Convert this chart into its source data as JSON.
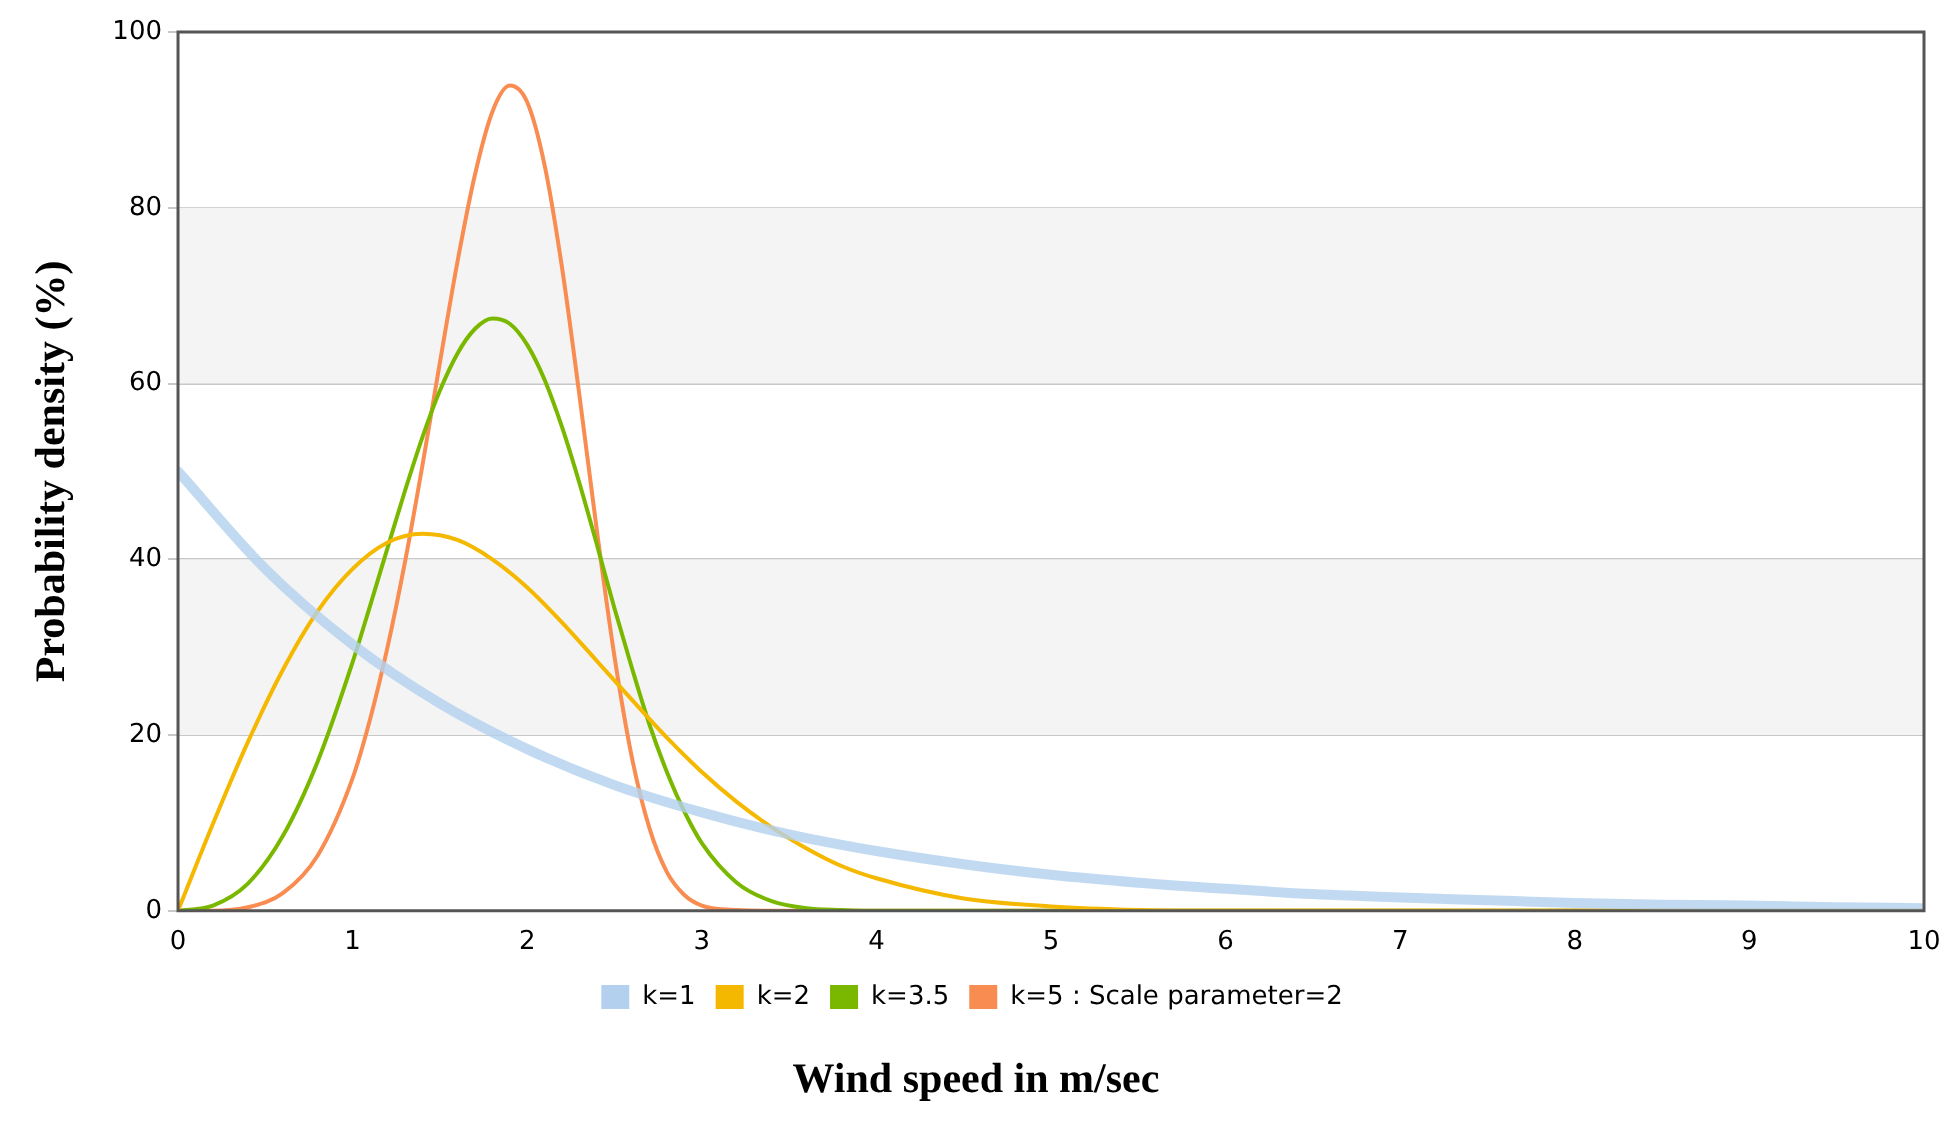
{
  "chart_data": {
    "type": "line",
    "xlabel": "Wind speed in m/sec",
    "ylabel": "Probability density (%)",
    "xlim": [
      0,
      10
    ],
    "xticks": [
      0,
      1,
      2,
      3,
      4,
      5,
      6,
      7,
      8,
      9,
      10
    ],
    "ylim": [
      0,
      100
    ],
    "yticks": [
      0,
      20,
      40,
      60,
      80,
      100
    ],
    "grid": "y",
    "legend": "bottom",
    "marker": "none",
    "line_style": "solid",
    "series": [
      {
        "name": "k=1",
        "color": "#b3d1ee",
        "x": [
          0,
          0.5,
          1,
          1.5,
          2,
          2.5,
          3,
          3.5,
          4,
          4.5,
          5,
          5.5,
          6,
          6.5,
          7,
          7.5,
          8,
          8.5,
          9,
          9.5,
          10
        ],
        "values": [
          50,
          38.9,
          30.3,
          23.6,
          18.4,
          14.3,
          11.2,
          8.7,
          6.8,
          5.3,
          4.1,
          3.2,
          2.5,
          1.9,
          1.5,
          1.2,
          0.9,
          0.7,
          0.6,
          0.4,
          0.3
        ]
      },
      {
        "name": "k=2",
        "color": "#f5b800",
        "x": [
          0,
          0.2,
          0.4,
          0.6,
          0.8,
          1,
          1.2,
          1.4,
          1.6,
          1.8,
          2,
          2.2,
          2.4,
          2.6,
          2.8,
          3,
          3.2,
          3.4,
          3.6,
          3.8,
          4,
          4.5,
          5,
          5.5,
          6,
          7,
          10
        ],
        "values": [
          0,
          9.9,
          19.2,
          27.4,
          34.1,
          38.9,
          41.9,
          42.9,
          42.2,
          40,
          36.8,
          32.8,
          28.4,
          24,
          19.7,
          15.8,
          12.4,
          9.5,
          7.1,
          5.1,
          3.7,
          1.4,
          0.5,
          0.1,
          0,
          0,
          0
        ]
      },
      {
        "name": "k=3.5",
        "color": "#7ab800",
        "x": [
          0,
          0.2,
          0.4,
          0.6,
          0.8,
          1,
          1.1,
          1.2,
          1.3,
          1.4,
          1.5,
          1.6,
          1.7,
          1.8,
          1.9,
          2,
          2.1,
          2.2,
          2.3,
          2.4,
          2.5,
          2.6,
          2.7,
          2.8,
          2.9,
          3,
          3.2,
          3.4,
          3.6,
          3.8,
          4,
          10
        ],
        "values": [
          0,
          0.6,
          3.1,
          8.5,
          17,
          28.3,
          34.7,
          41.3,
          47.8,
          53.9,
          59.2,
          63.4,
          66.2,
          67.4,
          66.8,
          64.4,
          60.4,
          55,
          48.6,
          41.6,
          34.4,
          27.6,
          21.2,
          15.8,
          11.3,
          7.7,
          3.2,
          1.1,
          0.3,
          0.1,
          0,
          0
        ]
      },
      {
        "name": "k=5 : Scale parameter=2",
        "color": "#f98c50",
        "x": [
          0,
          0.2,
          0.4,
          0.6,
          0.8,
          1,
          1.1,
          1.2,
          1.3,
          1.4,
          1.5,
          1.6,
          1.7,
          1.8,
          1.9,
          2,
          2.1,
          2.2,
          2.3,
          2.4,
          2.5,
          2.6,
          2.7,
          2.8,
          2.9,
          3,
          3.2,
          3.5,
          10
        ],
        "values": [
          0,
          0,
          0.4,
          2,
          6.3,
          15.1,
          21.8,
          30,
          39.7,
          50.7,
          62.4,
          73.8,
          83.7,
          90.9,
          93.9,
          92,
          84.8,
          73.1,
          58.5,
          43.1,
          28.9,
          17.4,
          9.4,
          4.4,
          1.8,
          0.6,
          0.1,
          0,
          0
        ]
      }
    ]
  }
}
